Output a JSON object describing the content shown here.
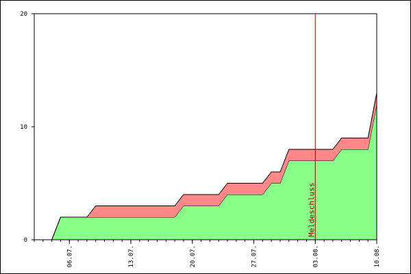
{
  "chart_data": {
    "type": "area",
    "stacked": true,
    "x": [
      0,
      1,
      2,
      3,
      4,
      5,
      6,
      7,
      8,
      9,
      10,
      11,
      12,
      13,
      14,
      15,
      16,
      17,
      18,
      19,
      20,
      21,
      22,
      23,
      24,
      25,
      26,
      27,
      28,
      29,
      30,
      31,
      32,
      33,
      34,
      35,
      36,
      37,
      38,
      39
    ],
    "series": [
      {
        "color": "#88ff88",
        "values": [
          0,
          0,
          0,
          2,
          2,
          2,
          2,
          2,
          2,
          2,
          2,
          2,
          2,
          2,
          2,
          2,
          2,
          3,
          3,
          3,
          3,
          3,
          4,
          4,
          4,
          4,
          4,
          5,
          5,
          7,
          7,
          7,
          7,
          7,
          7,
          8,
          8,
          8,
          8,
          12
        ]
      },
      {
        "color": "#ff8888",
        "values": [
          0,
          0,
          0,
          0,
          0,
          0,
          0,
          1,
          1,
          1,
          1,
          1,
          1,
          1,
          1,
          1,
          1,
          1,
          1,
          1,
          1,
          1,
          1,
          1,
          1,
          1,
          1,
          1,
          1,
          1,
          1,
          1,
          1,
          1,
          1,
          1,
          1,
          1,
          1,
          1
        ]
      }
    ],
    "xlim": [
      0,
      39
    ],
    "xticks": [
      {
        "value": 4,
        "label": "06.07."
      },
      {
        "value": 11,
        "label": "13.07."
      },
      {
        "value": 18,
        "label": "20.07."
      },
      {
        "value": 25,
        "label": "27.07."
      },
      {
        "value": 32,
        "label": "03.08."
      },
      {
        "value": 39,
        "label": "10.08."
      }
    ],
    "ylim": [
      0,
      20
    ],
    "yticks": [
      0,
      10,
      20
    ],
    "annotation": {
      "x": 32,
      "label": "Meldeschluss",
      "color": "#a00000"
    }
  }
}
